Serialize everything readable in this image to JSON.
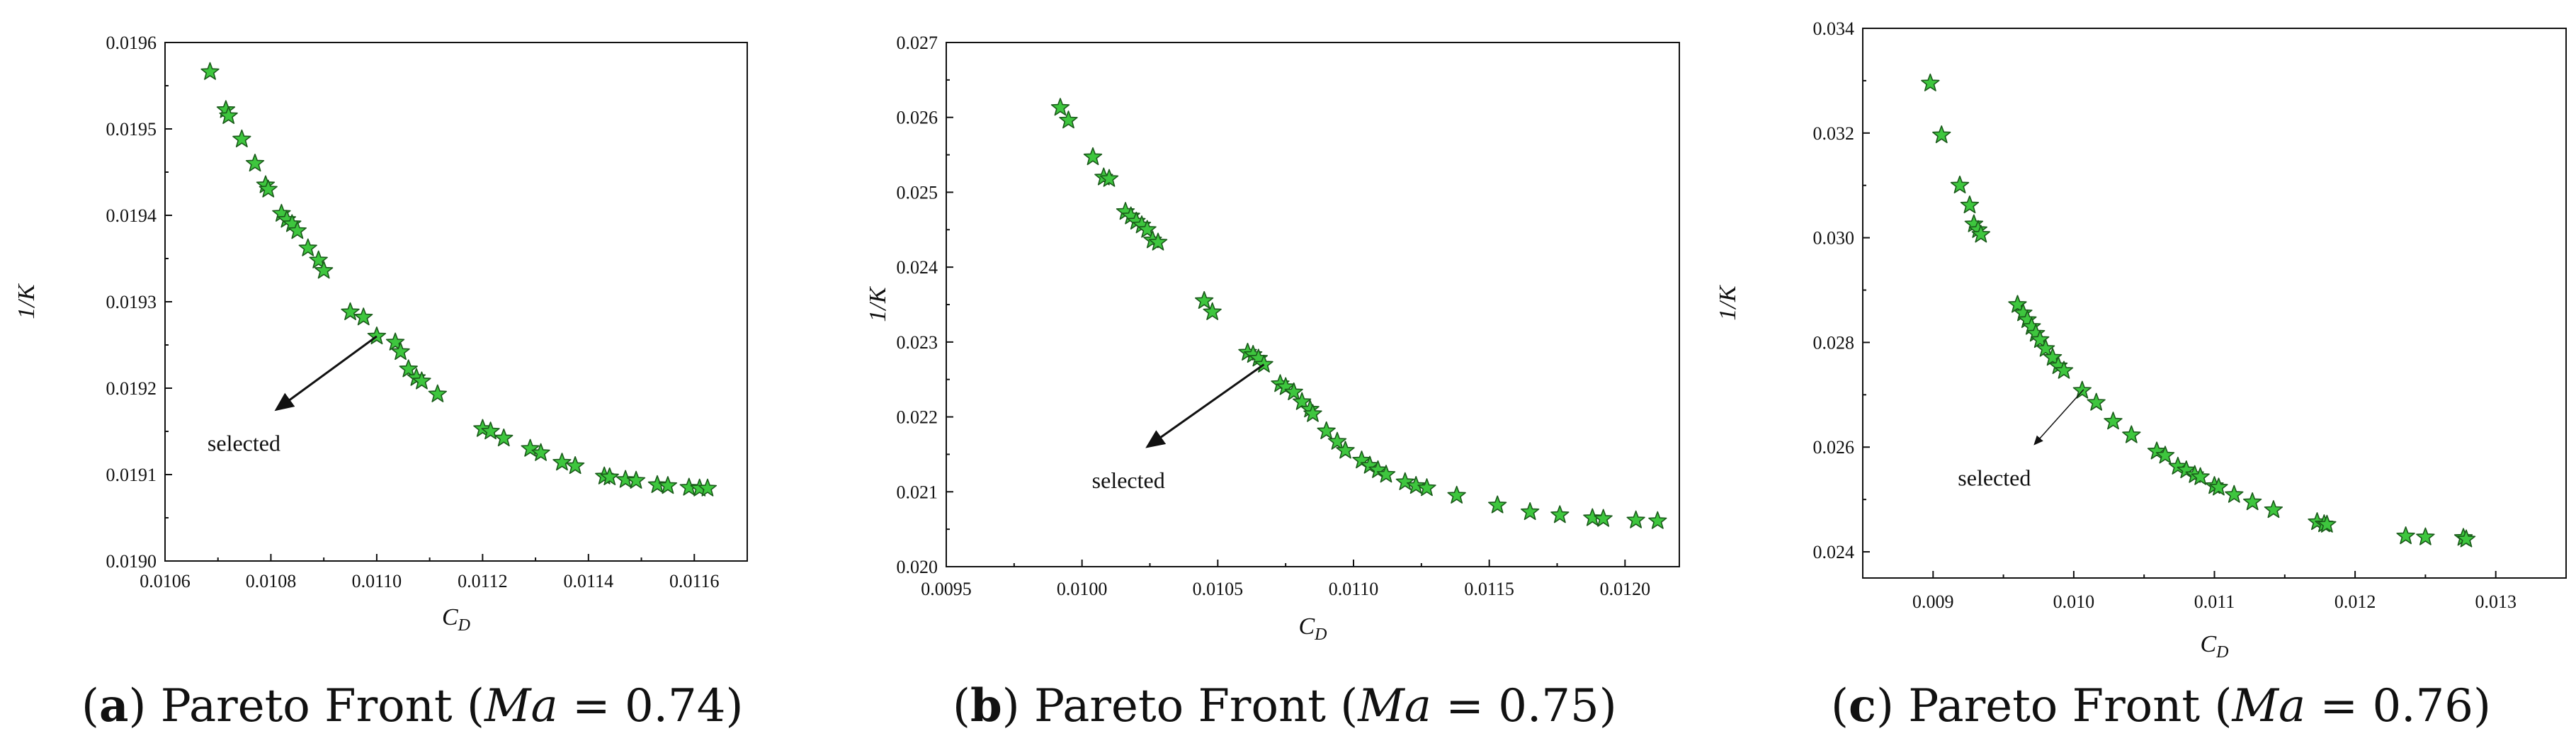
{
  "chart_data": [
    {
      "type": "scatter",
      "caption": {
        "letter": "a",
        "text": " Pareto Front (",
        "var": "Ma",
        "rest": " = 0.74)"
      },
      "xlabel": {
        "main": "C",
        "sub": "D"
      },
      "ylabel": "1/K",
      "xlim": [
        0.0106,
        0.0117
      ],
      "ylim": [
        0.019,
        0.0196
      ],
      "xticks": [
        "0.0106",
        "0.0108",
        "0.0110",
        "0.0112",
        "0.0114",
        "0.0116"
      ],
      "yticks": [
        "0.0190",
        "0.0191",
        "0.0192",
        "0.0193",
        "0.0194",
        "0.0195",
        "0.0196"
      ],
      "annotation": {
        "text": "selected",
        "point": [
          0.011,
          0.01926
        ],
        "tail": [
          0.01081,
          0.019175
        ]
      },
      "points": [
        [
          0.010685,
          0.019566
        ],
        [
          0.010715,
          0.019522
        ],
        [
          0.01072,
          0.019515
        ],
        [
          0.010745,
          0.019488
        ],
        [
          0.01077,
          0.01946
        ],
        [
          0.01079,
          0.019435
        ],
        [
          0.010795,
          0.01943
        ],
        [
          0.01082,
          0.019402
        ],
        [
          0.01083,
          0.019395
        ],
        [
          0.01084,
          0.01939
        ],
        [
          0.01085,
          0.019382
        ],
        [
          0.01087,
          0.019362
        ],
        [
          0.01089,
          0.019348
        ],
        [
          0.0109,
          0.019336
        ],
        [
          0.01095,
          0.019288
        ],
        [
          0.010975,
          0.019282
        ],
        [
          0.011,
          0.01926
        ],
        [
          0.011035,
          0.019253
        ],
        [
          0.011045,
          0.019242
        ],
        [
          0.01106,
          0.019222
        ],
        [
          0.011075,
          0.019212
        ],
        [
          0.011085,
          0.019208
        ],
        [
          0.011115,
          0.019193
        ],
        [
          0.0112,
          0.019153
        ],
        [
          0.011215,
          0.01915
        ],
        [
          0.01124,
          0.019142
        ],
        [
          0.01129,
          0.01913
        ],
        [
          0.01131,
          0.019125
        ],
        [
          0.01135,
          0.019114
        ],
        [
          0.011375,
          0.01911
        ],
        [
          0.01143,
          0.019098
        ],
        [
          0.01144,
          0.019097
        ],
        [
          0.01147,
          0.019094
        ],
        [
          0.01149,
          0.019093
        ],
        [
          0.01153,
          0.019088
        ],
        [
          0.01155,
          0.019087
        ],
        [
          0.01159,
          0.019085
        ],
        [
          0.01161,
          0.019084
        ],
        [
          0.011625,
          0.019084
        ]
      ]
    },
    {
      "type": "scatter",
      "caption": {
        "letter": "b",
        "text": " Pareto Front (",
        "var": "Ma",
        "rest": " = 0.75)"
      },
      "xlabel": {
        "main": "C",
        "sub": "D"
      },
      "ylabel": "1/K",
      "xlim": [
        0.0095,
        0.0122
      ],
      "ylim": [
        0.02,
        0.027
      ],
      "xticks": [
        "0.0095",
        "0.0100",
        "0.0105",
        "0.0110",
        "0.0115",
        "0.0120"
      ],
      "yticks": [
        "0.020",
        "0.021",
        "0.022",
        "0.023",
        "0.024",
        "0.025",
        "0.026",
        "0.027"
      ],
      "annotation": {
        "text": "selected",
        "point": [
          0.01067,
          0.0227
        ],
        "tail": [
          0.01024,
          0.0216
        ]
      },
      "points": [
        [
          0.00992,
          0.02613
        ],
        [
          0.00995,
          0.02596
        ],
        [
          0.01004,
          0.02547
        ],
        [
          0.01008,
          0.0252
        ],
        [
          0.0101,
          0.02518
        ],
        [
          0.01016,
          0.02474
        ],
        [
          0.01018,
          0.02468
        ],
        [
          0.0102,
          0.02461
        ],
        [
          0.01022,
          0.02456
        ],
        [
          0.01024,
          0.0245
        ],
        [
          0.01026,
          0.02436
        ],
        [
          0.01028,
          0.02433
        ],
        [
          0.01045,
          0.02355
        ],
        [
          0.01048,
          0.0234
        ],
        [
          0.01061,
          0.02286
        ],
        [
          0.01063,
          0.02283
        ],
        [
          0.01065,
          0.02278
        ],
        [
          0.01067,
          0.0227
        ],
        [
          0.01073,
          0.02244
        ],
        [
          0.01075,
          0.0224
        ],
        [
          0.01078,
          0.02233
        ],
        [
          0.01081,
          0.0222
        ],
        [
          0.01084,
          0.0221
        ],
        [
          0.01085,
          0.02204
        ],
        [
          0.0109,
          0.02181
        ],
        [
          0.01094,
          0.02167
        ],
        [
          0.01097,
          0.02155
        ],
        [
          0.01103,
          0.02142
        ],
        [
          0.01106,
          0.02135
        ],
        [
          0.01109,
          0.02129
        ],
        [
          0.01112,
          0.02123
        ],
        [
          0.01119,
          0.02113
        ],
        [
          0.01123,
          0.02108
        ],
        [
          0.01127,
          0.02105
        ],
        [
          0.01138,
          0.02095
        ],
        [
          0.01153,
          0.02082
        ],
        [
          0.01165,
          0.02073
        ],
        [
          0.01176,
          0.02069
        ],
        [
          0.01188,
          0.02065
        ],
        [
          0.01192,
          0.02064
        ],
        [
          0.01204,
          0.02062
        ],
        [
          0.01212,
          0.02061
        ]
      ]
    },
    {
      "type": "scatter",
      "caption": {
        "letter": "c",
        "text": " Pareto Front (",
        "var": "Ma",
        "rest": " = 0.76)"
      },
      "xlabel": {
        "main": "C",
        "sub": "D"
      },
      "ylabel": "1/K",
      "xlim": [
        0.0085,
        0.0135
      ],
      "ylim": [
        0.0235,
        0.034
      ],
      "xticks": [
        "0.009",
        "0.010",
        "0.011",
        "0.012",
        "0.013"
      ],
      "yticks": [
        "0.024",
        "0.026",
        "0.028",
        "0.030",
        "0.032",
        "0.034"
      ],
      "annotation": {
        "text": "selected",
        "point": [
          0.01007,
          0.0271
        ],
        "tail": [
          0.00972,
          0.02605
        ]
      },
      "points": [
        [
          0.00898,
          0.03295
        ],
        [
          0.00906,
          0.03196
        ],
        [
          0.00919,
          0.031
        ],
        [
          0.00926,
          0.03062
        ],
        [
          0.00929,
          0.03026
        ],
        [
          0.00932,
          0.03015
        ],
        [
          0.00934,
          0.03006
        ],
        [
          0.0096,
          0.02872
        ],
        [
          0.00964,
          0.02856
        ],
        [
          0.00967,
          0.02843
        ],
        [
          0.0097,
          0.0283
        ],
        [
          0.00973,
          0.02817
        ],
        [
          0.00976,
          0.02805
        ],
        [
          0.0098,
          0.02788
        ],
        [
          0.00985,
          0.02771
        ],
        [
          0.00989,
          0.02755
        ],
        [
          0.00993,
          0.02746
        ],
        [
          0.01006,
          0.02708
        ],
        [
          0.01016,
          0.02685
        ],
        [
          0.01028,
          0.02649
        ],
        [
          0.01041,
          0.02623
        ],
        [
          0.01059,
          0.02592
        ],
        [
          0.01065,
          0.02584
        ],
        [
          0.01074,
          0.02563
        ],
        [
          0.0108,
          0.02556
        ],
        [
          0.01086,
          0.02547
        ],
        [
          0.0109,
          0.02543
        ],
        [
          0.011,
          0.02526
        ],
        [
          0.01103,
          0.02523
        ],
        [
          0.01114,
          0.02509
        ],
        [
          0.01127,
          0.02495
        ],
        [
          0.01142,
          0.0248
        ],
        [
          0.01173,
          0.02457
        ],
        [
          0.01178,
          0.02453
        ],
        [
          0.0118,
          0.02452
        ],
        [
          0.01236,
          0.0243
        ],
        [
          0.0125,
          0.02428
        ],
        [
          0.01277,
          0.02427
        ],
        [
          0.01279,
          0.02424
        ]
      ]
    }
  ],
  "colors": {
    "marker_fill": "#3ec63e",
    "marker_stroke": "#1a5a1a",
    "axis": "#111111"
  }
}
